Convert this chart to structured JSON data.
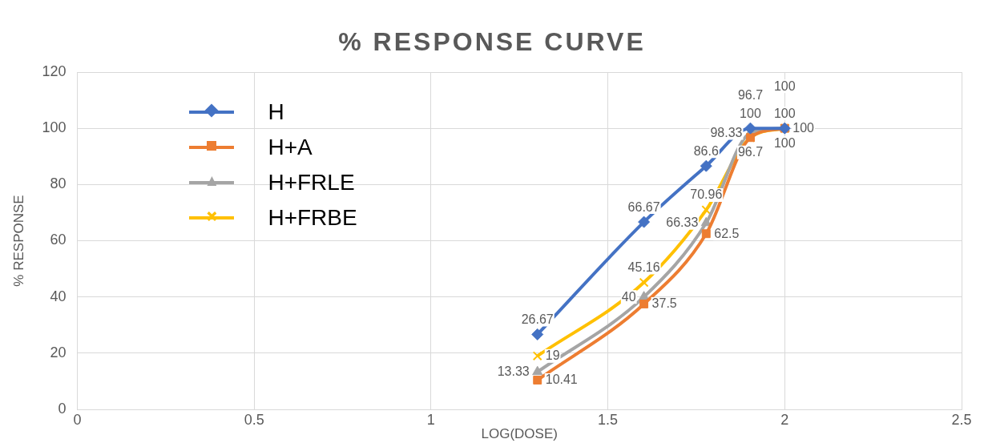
{
  "chart_data": {
    "type": "line",
    "title": "% RESPONSE CURVE",
    "xlabel": "LOG(DOSE)",
    "ylabel": "% RESPONSE",
    "x": [
      1.301,
      1.602,
      1.778,
      1.903,
      2
    ],
    "series": [
      {
        "name": "H",
        "color": "#4472c4",
        "marker": "diamond",
        "values": [
          26.67,
          66.67,
          86.6,
          100,
          100
        ]
      },
      {
        "name": "H+A",
        "color": "#ed7d31",
        "marker": "square",
        "values": [
          10.41,
          37.5,
          62.5,
          96.7,
          100
        ]
      },
      {
        "name": "H+FRLE",
        "color": "#a5a5a5",
        "marker": "triangle",
        "values": [
          13.33,
          40,
          66.33,
          98.33,
          100
        ]
      },
      {
        "name": "H+FRBE",
        "color": "#ffc000",
        "marker": "cross",
        "values": [
          19,
          45.16,
          70.96,
          96.7,
          100
        ]
      }
    ],
    "xlim": [
      0,
      2.5
    ],
    "xticks": [
      0,
      0.5,
      1,
      1.5,
      2,
      2.5
    ],
    "ylim": [
      0,
      120
    ],
    "yticks": [
      0,
      20,
      40,
      60,
      80,
      100,
      120
    ],
    "grid": true,
    "legend": "top left",
    "data_labels": true
  }
}
